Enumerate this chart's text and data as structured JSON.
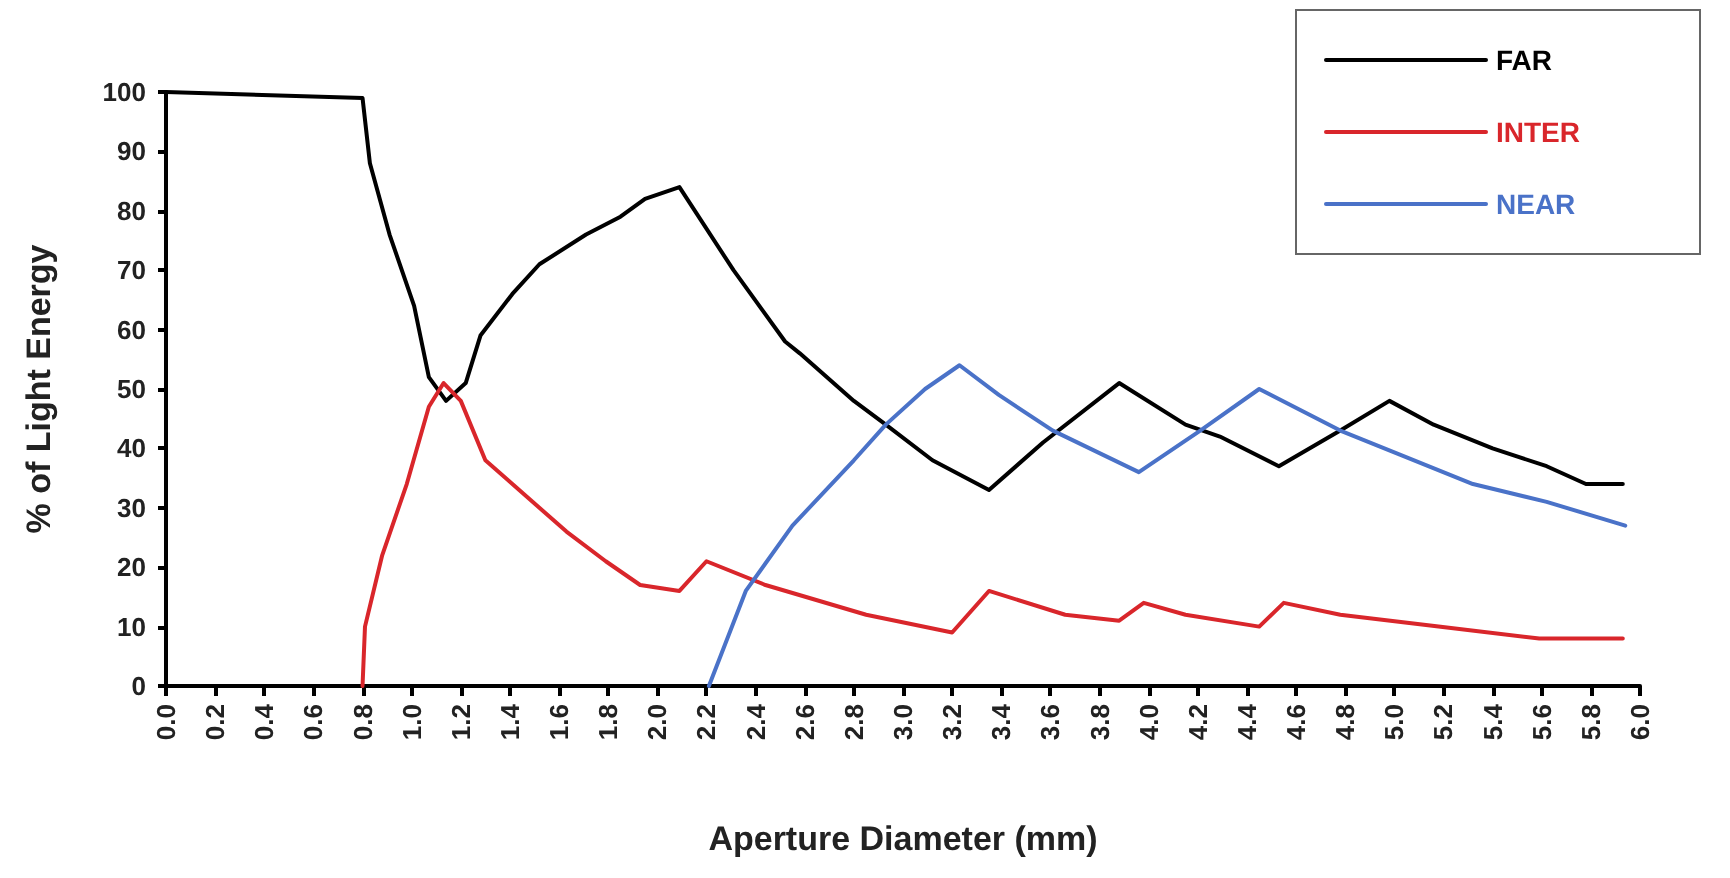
{
  "chart_data": {
    "type": "line",
    "xlabel": "Aperture Diameter (mm)",
    "ylabel": "% of Light Energy",
    "xlim": [
      0,
      6
    ],
    "xticks": [
      {
        "value": 0,
        "label": "0.0"
      },
      0.2,
      0.4,
      0.6,
      0.8,
      {
        "value": 1,
        "label": "1.0"
      },
      1.2,
      1.4,
      1.6,
      1.8,
      {
        "value": 2,
        "label": "2.0"
      },
      2.2,
      2.4,
      2.6,
      2.8,
      {
        "value": 3,
        "label": "3.0"
      },
      3.2,
      3.4,
      3.6,
      3.8,
      {
        "value": 4,
        "label": "4.0"
      },
      4.2,
      4.4,
      4.6,
      4.8,
      {
        "value": 5,
        "label": "5.0"
      },
      5.2,
      5.4,
      5.6,
      5.8,
      {
        "value": 6,
        "label": "6.0"
      }
    ],
    "ylim": [
      0,
      100
    ],
    "yticks": [
      0,
      10,
      20,
      30,
      40,
      50,
      60,
      70,
      80,
      90,
      100
    ],
    "grid": false,
    "legend": "top right",
    "marker": "none",
    "line_style": "solid",
    "series": [
      {
        "name": "FAR",
        "color": "#000000",
        "x": [
          0,
          0.8,
          0.83,
          0.91,
          1.01,
          1.07,
          1.14,
          1.22,
          1.28,
          1.41,
          1.52,
          1.71,
          1.85,
          1.95,
          2.09,
          2.31,
          2.52,
          2.58,
          2.8,
          2.93,
          3.12,
          3.35,
          3.57,
          3.88,
          4.15,
          4.29,
          4.53,
          4.78,
          4.98,
          5.16,
          5.4,
          5.62,
          5.78,
          5.93
        ],
        "values": [
          100,
          99,
          88,
          76,
          64,
          52,
          48,
          51,
          59,
          66,
          71,
          76,
          79,
          82,
          84,
          70,
          58,
          56,
          48,
          44,
          38,
          33,
          41,
          51,
          44,
          42,
          37,
          43,
          48,
          44,
          40,
          37,
          34,
          34
        ]
      },
      {
        "name": "INTER",
        "color": "#d9262b",
        "x": [
          0.8,
          0.81,
          0.88,
          0.98,
          1.07,
          1.13,
          1.2,
          1.3,
          1.41,
          1.63,
          1.79,
          1.93,
          2.09,
          2.2,
          2.44,
          2.85,
          3.2,
          3.35,
          3.66,
          3.88,
          3.98,
          4.15,
          4.45,
          4.55,
          4.78,
          5.18,
          5.59,
          5.93
        ],
        "values": [
          0,
          10,
          22,
          34,
          47,
          51,
          48,
          38,
          34,
          26,
          21,
          17,
          16,
          21,
          17,
          12,
          9,
          16,
          12,
          11,
          14,
          12,
          10,
          14,
          12,
          10,
          8,
          8
        ]
      },
      {
        "name": "NEAR",
        "color": "#4a72c8",
        "x": [
          2.21,
          2.36,
          2.55,
          2.8,
          2.93,
          3.09,
          3.23,
          3.39,
          3.61,
          3.96,
          4.21,
          4.45,
          4.78,
          5.02,
          5.32,
          5.62,
          5.94
        ],
        "values": [
          0,
          16,
          27,
          38,
          44,
          50,
          54,
          49,
          43,
          36,
          43,
          50,
          43,
          39,
          34,
          31,
          27
        ]
      }
    ]
  }
}
